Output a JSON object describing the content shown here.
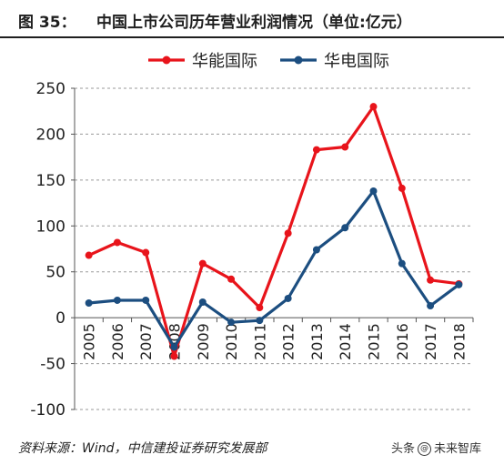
{
  "figure": {
    "label": "图 35：",
    "title": "中国上市公司历年营业利润情况（单位:亿元）"
  },
  "source_note": "资料来源：Wind，中信建投证券研究发展部",
  "watermark": {
    "prefix": "头条",
    "icon": "@",
    "handle": "未来智库"
  },
  "chart_data": {
    "type": "line",
    "title": "",
    "xlabel": "",
    "ylabel": "",
    "x": [
      "2005",
      "2006",
      "2007",
      "2008",
      "2009",
      "2010",
      "2011",
      "2012",
      "2013",
      "2014",
      "2015",
      "2016",
      "2017",
      "2018"
    ],
    "ylim": [
      -100,
      250
    ],
    "yticks": [
      -100,
      -50,
      0,
      50,
      100,
      150,
      200,
      250
    ],
    "grid": "horizontal dashed",
    "legend_position": "top-center",
    "series": [
      {
        "name": "华能国际",
        "color": "#e8141b",
        "values": [
          68,
          82,
          71,
          -42,
          59,
          42,
          11,
          92,
          183,
          186,
          230,
          141,
          41,
          37
        ]
      },
      {
        "name": "华电国际",
        "color": "#1c4e80",
        "values": [
          16,
          19,
          19,
          -32,
          17,
          -5,
          -3,
          21,
          74,
          98,
          138,
          59,
          13,
          36
        ]
      }
    ]
  }
}
